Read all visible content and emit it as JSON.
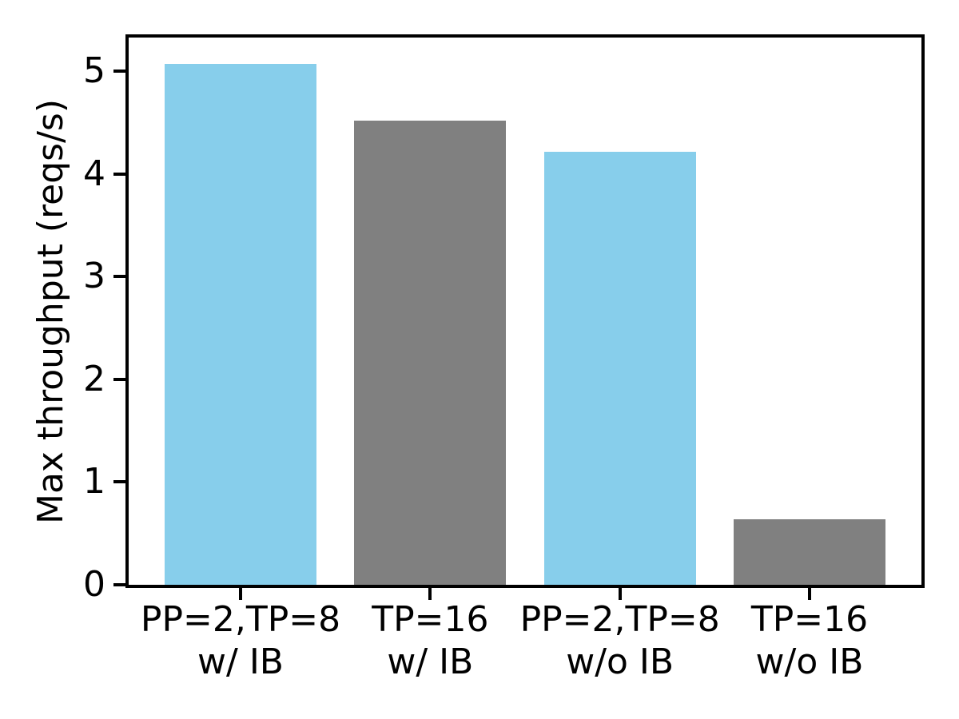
{
  "chart_data": {
    "type": "bar",
    "title": "",
    "xlabel": "",
    "ylabel": "Max throughput (reqs/s)",
    "ylim": [
      0,
      5.33
    ],
    "yticks": [
      0,
      1,
      2,
      3,
      4,
      5
    ],
    "categories": [
      [
        "PP=2,TP=8",
        "w/ IB"
      ],
      [
        "TP=16",
        "w/ IB"
      ],
      [
        "PP=2,TP=8",
        "w/o IB"
      ],
      [
        "TP=16",
        "w/o IB"
      ]
    ],
    "values": [
      5.07,
      4.52,
      4.22,
      0.64
    ],
    "bar_colors": [
      "#87CEEB",
      "#808080",
      "#87CEEB",
      "#808080"
    ],
    "grid": false,
    "legend_position": "none"
  },
  "colors": {
    "skyblue": "#87CEEB",
    "gray": "#808080",
    "axis": "#000000",
    "background": "#FFFFFF"
  }
}
